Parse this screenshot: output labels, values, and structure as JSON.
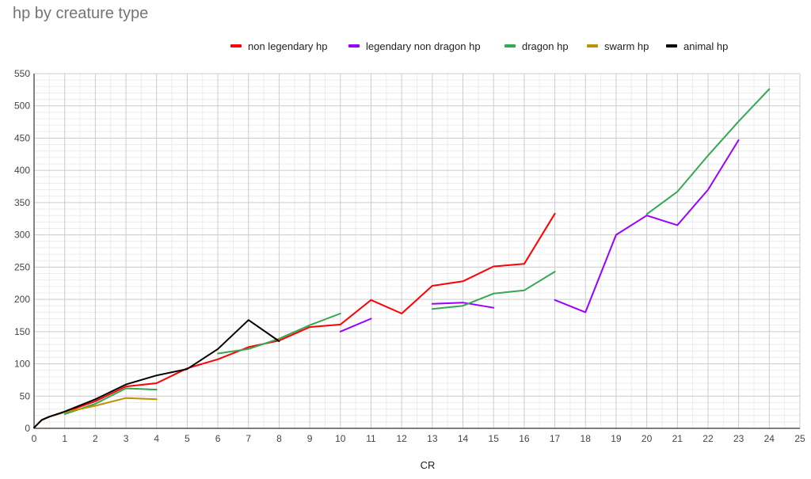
{
  "chart_data": {
    "type": "line",
    "title": "hp by creature type",
    "xlabel": "CR",
    "ylabel": "",
    "xlim": [
      0,
      25
    ],
    "ylim": [
      0,
      550
    ],
    "x_ticks": [
      0,
      1,
      2,
      3,
      4,
      5,
      6,
      7,
      8,
      9,
      10,
      11,
      12,
      13,
      14,
      15,
      16,
      17,
      18,
      19,
      20,
      21,
      22,
      23,
      24,
      25
    ],
    "y_ticks": [
      0,
      50,
      100,
      150,
      200,
      250,
      300,
      350,
      400,
      450,
      500,
      550
    ],
    "grid": true,
    "legend_position": "top",
    "series": [
      {
        "name": "non legendary hp",
        "color": "#ff0000",
        "points": [
          [
            0,
            1
          ],
          [
            0.125,
            7
          ],
          [
            0.25,
            13
          ],
          [
            0.5,
            18
          ],
          [
            1,
            25
          ],
          [
            2,
            42
          ],
          [
            3,
            65
          ],
          [
            4,
            70
          ],
          [
            5,
            93
          ],
          [
            6,
            107
          ],
          [
            7,
            126
          ],
          [
            8,
            136
          ],
          [
            9,
            157
          ],
          [
            10,
            161
          ],
          [
            11,
            199
          ],
          [
            12,
            178
          ],
          [
            13,
            221
          ],
          [
            14,
            228
          ],
          [
            15,
            251
          ],
          [
            16,
            255
          ],
          [
            17,
            333
          ]
        ]
      },
      {
        "name": "legendary non dragon hp",
        "color": "#9900ff",
        "segments": [
          [
            [
              10,
              150
            ],
            [
              11,
              170
            ]
          ],
          [
            [
              13,
              193
            ],
            [
              14,
              195
            ],
            [
              15,
              187
            ]
          ],
          [
            [
              17,
              199
            ],
            [
              18,
              180
            ],
            [
              19,
              300
            ],
            [
              20,
              330
            ],
            [
              21,
              315
            ],
            [
              22,
              370
            ],
            [
              23,
              447
            ]
          ]
        ]
      },
      {
        "name": "dragon hp",
        "color": "#34a853",
        "segments": [
          [
            [
              1,
              22
            ],
            [
              2,
              38
            ],
            [
              3,
              62
            ],
            [
              4,
              60
            ]
          ],
          [
            [
              6,
              116
            ],
            [
              7,
              123
            ],
            [
              8,
              139
            ],
            [
              9,
              160
            ],
            [
              10,
              178
            ]
          ],
          [
            [
              13,
              185
            ],
            [
              14,
              190
            ],
            [
              15,
              209
            ],
            [
              16,
              214
            ],
            [
              17,
              243
            ]
          ],
          [
            [
              20,
              332
            ],
            [
              21,
              367
            ],
            [
              22,
              423
            ],
            [
              23,
              476
            ],
            [
              24,
              526
            ]
          ]
        ]
      },
      {
        "name": "swarm hp",
        "color": "#bf9000",
        "points": [
          [
            0,
            1
          ],
          [
            0.125,
            7
          ],
          [
            0.25,
            13
          ],
          [
            0.5,
            18
          ],
          [
            1,
            25
          ],
          [
            2,
            35
          ],
          [
            3,
            47
          ],
          [
            4,
            45
          ]
        ]
      },
      {
        "name": "animal hp",
        "color": "#000000",
        "points": [
          [
            0,
            1
          ],
          [
            0.125,
            7
          ],
          [
            0.25,
            13
          ],
          [
            0.5,
            18
          ],
          [
            1,
            26
          ],
          [
            2,
            45
          ],
          [
            3,
            68
          ],
          [
            4,
            82
          ],
          [
            5,
            92
          ],
          [
            6,
            123
          ],
          [
            7,
            168
          ],
          [
            8,
            135
          ]
        ]
      }
    ]
  }
}
